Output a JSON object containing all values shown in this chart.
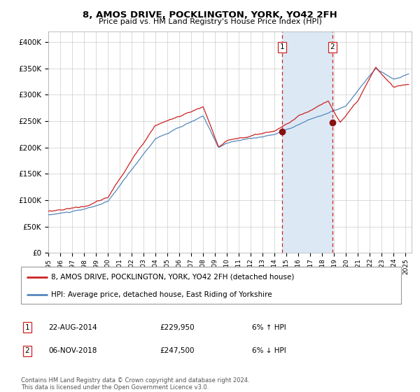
{
  "title1": "8, AMOS DRIVE, POCKLINGTON, YORK, YO42 2FH",
  "title2": "Price paid vs. HM Land Registry's House Price Index (HPI)",
  "ylim": [
    0,
    420000
  ],
  "yticks": [
    0,
    50000,
    100000,
    150000,
    200000,
    250000,
    300000,
    350000,
    400000
  ],
  "xlim_start": 1995.0,
  "xlim_end": 2025.5,
  "sale1_date": 2014.64,
  "sale1_price": 229950,
  "sale2_date": 2018.84,
  "sale2_price": 247500,
  "shade_color": "#dce9f5",
  "hpi_color": "#5588bb",
  "price_color": "#cc2222",
  "marker_color": "#881111",
  "vline_color": "#cc2222",
  "grid_color": "#cccccc",
  "background_color": "#ffffff",
  "legend_label1": "8, AMOS DRIVE, POCKLINGTON, YORK, YO42 2FH (detached house)",
  "legend_label2": "HPI: Average price, detached house, East Riding of Yorkshire",
  "note1_num": "1",
  "note1_date": "22-AUG-2014",
  "note1_price": "£229,950",
  "note1_pct": "6% ↑ HPI",
  "note2_num": "2",
  "note2_date": "06-NOV-2018",
  "note2_price": "£247,500",
  "note2_pct": "6% ↓ HPI",
  "footer": "Contains HM Land Registry data © Crown copyright and database right 2024.\nThis data is licensed under the Open Government Licence v3.0."
}
